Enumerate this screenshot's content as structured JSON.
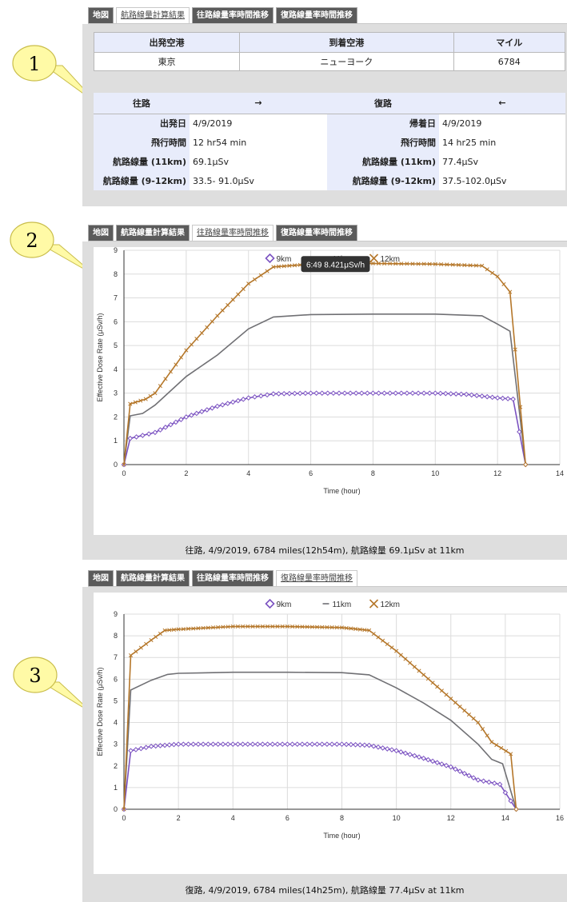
{
  "callouts": [
    "1",
    "2",
    "3"
  ],
  "tabs_top": [
    {
      "label": "地図",
      "active": false
    },
    {
      "label": "航路線量計算結果",
      "active": true
    },
    {
      "label": "往路線量率時間推移",
      "active": false
    },
    {
      "label": "復路線量率時間推移",
      "active": false
    }
  ],
  "tabs_mid": [
    {
      "label": "地図",
      "active": false
    },
    {
      "label": "航路線量計算結果",
      "active": false
    },
    {
      "label": "往路線量率時間推移",
      "active": true
    },
    {
      "label": "復路線量率時間推移",
      "active": false
    }
  ],
  "tabs_bot": [
    {
      "label": "地図",
      "active": false
    },
    {
      "label": "航路線量計算結果",
      "active": false
    },
    {
      "label": "往路線量率時間推移",
      "active": false
    },
    {
      "label": "復路線量率時間推移",
      "active": true
    }
  ],
  "route_table": {
    "headers": [
      "出発空港",
      "到着空港",
      "マイル"
    ],
    "row": [
      "東京",
      "ニューヨーク",
      "6784"
    ]
  },
  "flight_table": {
    "outbound_title": "往路",
    "outbound_arrow": "→",
    "return_title": "復路",
    "return_arrow": "←",
    "rows": [
      {
        "l1": "出発日",
        "v1": "4/9/2019",
        "l2": "帰着日",
        "v2": "4/9/2019"
      },
      {
        "l1": "飛行時間",
        "v1": "12 hr54 min",
        "l2": "飛行時間",
        "v2": "14 hr25 min"
      },
      {
        "l1": "航路線量 (11km)",
        "v1": "69.1μSv",
        "l2": "航路線量 (11km)",
        "v2": "77.4μSv"
      },
      {
        "l1": "航路線量 (9-12km)",
        "v1": "33.5- 91.0μSv",
        "l2": "航路線量 (9-12km)",
        "v2": "37.5-102.0μSv"
      }
    ]
  },
  "captions": {
    "outbound": "往路, 4/9/2019, 6784 miles(12h54m), 航路線量 69.1μSv at 11km",
    "return": "復路, 4/9/2019, 6784 miles(14h25m), 航路線量 77.4μSv at 11km"
  },
  "colors": {
    "s9": "#7b52c1",
    "s11": "#707074",
    "s12": "#b5772a"
  },
  "chart_data": [
    {
      "type": "line",
      "xlabel": "Time (hour)",
      "ylabel": "Effective Dose Rate (μSv/h)",
      "xlim": [
        0,
        14
      ],
      "ylim": [
        0,
        9
      ],
      "xticks": [
        0,
        2,
        4,
        6,
        8,
        10,
        12,
        14
      ],
      "yticks": [
        0,
        1,
        2,
        3,
        4,
        5,
        6,
        7,
        8,
        9
      ],
      "grid": true,
      "legend_position": "top",
      "tooltip": "6:49 8.421μSv/h",
      "series": [
        {
          "name": "9km",
          "marker": "diamond",
          "points": [
            [
              0,
              0
            ],
            [
              0.2,
              1.1
            ],
            [
              1,
              1.35
            ],
            [
              2,
              2.0
            ],
            [
              3,
              2.45
            ],
            [
              4,
              2.8
            ],
            [
              4.8,
              2.97
            ],
            [
              6,
              3.0
            ],
            [
              8,
              3.0
            ],
            [
              10,
              3.0
            ],
            [
              11,
              2.95
            ],
            [
              12,
              2.8
            ],
            [
              12.5,
              2.75
            ],
            [
              12.9,
              0
            ]
          ]
        },
        {
          "name": "11km",
          "marker": "line",
          "points": [
            [
              0,
              0
            ],
            [
              0.2,
              2.05
            ],
            [
              0.6,
              2.15
            ],
            [
              1,
              2.5
            ],
            [
              2,
              3.7
            ],
            [
              3,
              4.6
            ],
            [
              4,
              5.7
            ],
            [
              4.8,
              6.2
            ],
            [
              6,
              6.3
            ],
            [
              8,
              6.32
            ],
            [
              10,
              6.32
            ],
            [
              11.5,
              6.25
            ],
            [
              12,
              5.9
            ],
            [
              12.4,
              5.6
            ],
            [
              12.9,
              0
            ]
          ]
        },
        {
          "name": "12km",
          "marker": "x",
          "points": [
            [
              0,
              0
            ],
            [
              0.2,
              2.55
            ],
            [
              0.7,
              2.75
            ],
            [
              1,
              3.0
            ],
            [
              2,
              4.8
            ],
            [
              3,
              6.25
            ],
            [
              4,
              7.6
            ],
            [
              4.8,
              8.3
            ],
            [
              6,
              8.42
            ],
            [
              6.82,
              8.42
            ],
            [
              8,
              8.45
            ],
            [
              10,
              8.42
            ],
            [
              11.5,
              8.35
            ],
            [
              12,
              7.9
            ],
            [
              12.4,
              7.25
            ],
            [
              12.9,
              0
            ]
          ]
        }
      ]
    },
    {
      "type": "line",
      "xlabel": "Time (hour)",
      "ylabel": "Effective Dose Rate (μSv/h)",
      "xlim": [
        0,
        16
      ],
      "ylim": [
        0,
        9
      ],
      "xticks": [
        0,
        2,
        4,
        6,
        8,
        10,
        12,
        14,
        16
      ],
      "yticks": [
        0,
        1,
        2,
        3,
        4,
        5,
        6,
        7,
        8,
        9
      ],
      "grid": true,
      "legend_position": "top",
      "series": [
        {
          "name": "9km",
          "marker": "diamond",
          "points": [
            [
              0,
              0
            ],
            [
              0.25,
              2.7
            ],
            [
              1,
              2.9
            ],
            [
              2,
              3.0
            ],
            [
              4,
              3.0
            ],
            [
              6,
              3.0
            ],
            [
              8,
              3.0
            ],
            [
              9,
              2.95
            ],
            [
              10,
              2.7
            ],
            [
              11,
              2.35
            ],
            [
              12,
              1.95
            ],
            [
              13,
              1.35
            ],
            [
              13.8,
              1.15
            ],
            [
              14.4,
              0
            ]
          ]
        },
        {
          "name": "11km",
          "marker": "line",
          "points": [
            [
              0,
              0
            ],
            [
              0.25,
              5.5
            ],
            [
              1,
              5.95
            ],
            [
              1.6,
              6.22
            ],
            [
              2,
              6.27
            ],
            [
              4,
              6.32
            ],
            [
              6,
              6.32
            ],
            [
              8,
              6.3
            ],
            [
              9,
              6.2
            ],
            [
              10,
              5.6
            ],
            [
              11,
              4.9
            ],
            [
              12,
              4.1
            ],
            [
              13,
              3.0
            ],
            [
              13.5,
              2.3
            ],
            [
              13.9,
              2.1
            ],
            [
              14.4,
              0
            ]
          ]
        },
        {
          "name": "12km",
          "marker": "x",
          "points": [
            [
              0,
              0
            ],
            [
              0.25,
              7.1
            ],
            [
              1,
              7.8
            ],
            [
              1.5,
              8.25
            ],
            [
              2,
              8.3
            ],
            [
              4,
              8.43
            ],
            [
              6,
              8.43
            ],
            [
              8,
              8.38
            ],
            [
              9,
              8.25
            ],
            [
              10,
              7.3
            ],
            [
              11,
              6.2
            ],
            [
              12,
              5.1
            ],
            [
              13,
              4.0
            ],
            [
              13.5,
              3.1
            ],
            [
              14.2,
              2.55
            ],
            [
              14.4,
              0
            ]
          ]
        }
      ]
    }
  ]
}
